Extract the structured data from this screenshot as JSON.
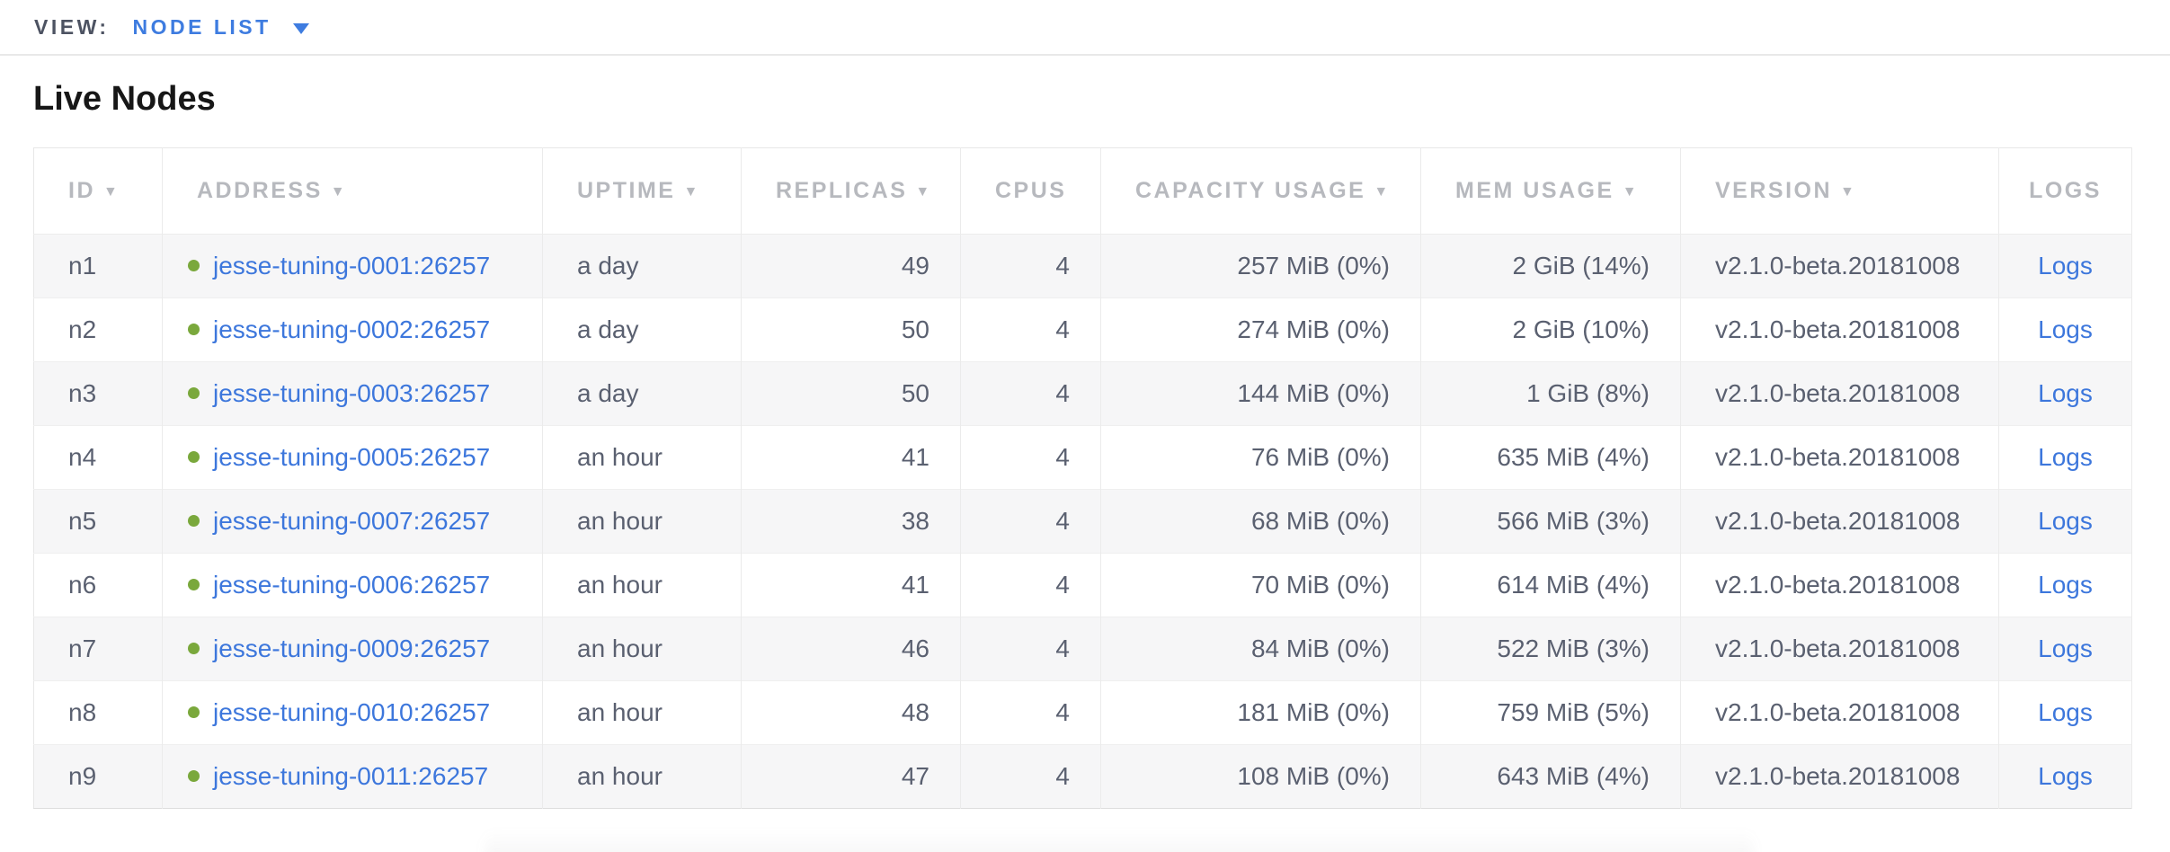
{
  "view_bar": {
    "label": "VIEW:",
    "selected_view": "NODE LIST"
  },
  "section_title": "Live Nodes",
  "icons": {
    "sort_desc": "▼",
    "dropdown_caret": "caret-down",
    "node_status": "live-status-dot"
  },
  "colors": {
    "accent_blue": "#3e7ce0",
    "link_blue": "#3d77dc",
    "live_green": "#7aa83c",
    "header_gray": "#b7b9be",
    "text_slate": "#5a6070",
    "row_alt_bg": "#f6f6f7"
  },
  "table": {
    "columns": [
      {
        "key": "id",
        "label": "ID",
        "sortable": true,
        "align": "left"
      },
      {
        "key": "address",
        "label": "ADDRESS",
        "sortable": true,
        "align": "left"
      },
      {
        "key": "uptime",
        "label": "UPTIME",
        "sortable": true,
        "align": "left"
      },
      {
        "key": "replicas",
        "label": "REPLICAS",
        "sortable": true,
        "align": "right"
      },
      {
        "key": "cpus",
        "label": "CPUS",
        "sortable": false,
        "align": "right"
      },
      {
        "key": "capacity",
        "label": "CAPACITY USAGE",
        "sortable": true,
        "align": "right"
      },
      {
        "key": "mem",
        "label": "MEM USAGE",
        "sortable": true,
        "align": "right"
      },
      {
        "key": "version",
        "label": "VERSION",
        "sortable": true,
        "align": "left"
      },
      {
        "key": "logs",
        "label": "LOGS",
        "sortable": false,
        "align": "center"
      }
    ],
    "rows": [
      {
        "id": "n1",
        "address": "jesse-tuning-0001:26257",
        "uptime": "a day",
        "replicas": "49",
        "cpus": "4",
        "capacity": "257 MiB (0%)",
        "mem": "2 GiB (14%)",
        "version": "v2.1.0-beta.20181008",
        "logs": "Logs"
      },
      {
        "id": "n2",
        "address": "jesse-tuning-0002:26257",
        "uptime": "a day",
        "replicas": "50",
        "cpus": "4",
        "capacity": "274 MiB (0%)",
        "mem": "2 GiB (10%)",
        "version": "v2.1.0-beta.20181008",
        "logs": "Logs"
      },
      {
        "id": "n3",
        "address": "jesse-tuning-0003:26257",
        "uptime": "a day",
        "replicas": "50",
        "cpus": "4",
        "capacity": "144 MiB (0%)",
        "mem": "1 GiB (8%)",
        "version": "v2.1.0-beta.20181008",
        "logs": "Logs"
      },
      {
        "id": "n4",
        "address": "jesse-tuning-0005:26257",
        "uptime": "an hour",
        "replicas": "41",
        "cpus": "4",
        "capacity": "76 MiB (0%)",
        "mem": "635 MiB (4%)",
        "version": "v2.1.0-beta.20181008",
        "logs": "Logs"
      },
      {
        "id": "n5",
        "address": "jesse-tuning-0007:26257",
        "uptime": "an hour",
        "replicas": "38",
        "cpus": "4",
        "capacity": "68 MiB (0%)",
        "mem": "566 MiB (3%)",
        "version": "v2.1.0-beta.20181008",
        "logs": "Logs"
      },
      {
        "id": "n6",
        "address": "jesse-tuning-0006:26257",
        "uptime": "an hour",
        "replicas": "41",
        "cpus": "4",
        "capacity": "70 MiB (0%)",
        "mem": "614 MiB (4%)",
        "version": "v2.1.0-beta.20181008",
        "logs": "Logs"
      },
      {
        "id": "n7",
        "address": "jesse-tuning-0009:26257",
        "uptime": "an hour",
        "replicas": "46",
        "cpus": "4",
        "capacity": "84 MiB (0%)",
        "mem": "522 MiB (3%)",
        "version": "v2.1.0-beta.20181008",
        "logs": "Logs"
      },
      {
        "id": "n8",
        "address": "jesse-tuning-0010:26257",
        "uptime": "an hour",
        "replicas": "48",
        "cpus": "4",
        "capacity": "181 MiB (0%)",
        "mem": "759 MiB (5%)",
        "version": "v2.1.0-beta.20181008",
        "logs": "Logs"
      },
      {
        "id": "n9",
        "address": "jesse-tuning-0011:26257",
        "uptime": "an hour",
        "replicas": "47",
        "cpus": "4",
        "capacity": "108 MiB (0%)",
        "mem": "643 MiB (4%)",
        "version": "v2.1.0-beta.20181008",
        "logs": "Logs"
      }
    ]
  }
}
